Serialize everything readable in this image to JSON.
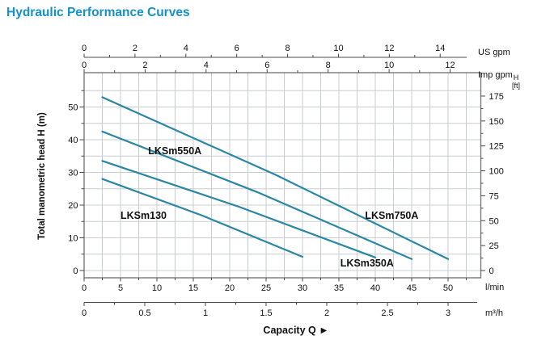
{
  "title": "Hydraulic Performance Curves",
  "colors": {
    "title": "#1591c9",
    "curve": "#2a86a5",
    "grid": "#c9cdd1",
    "frame": "#6e6e6e",
    "axis": "#4a4a4a",
    "text": "#111111"
  },
  "chart_data": {
    "type": "line",
    "title": "Hydraulic Performance Curves",
    "xlabel": "Capacity Q  ►",
    "ylabel": "Total manometric head H (m)",
    "grid": "on",
    "x_range_lmin": [
      0,
      54.5
    ],
    "y_range_m": [
      -2.2,
      60.5
    ],
    "x_axis_lmin": {
      "unit": "l/min",
      "ticks": [
        0,
        5,
        10,
        15,
        20,
        25,
        30,
        35,
        40,
        45,
        50
      ],
      "minor_step": 2.5
    },
    "x_axis_m3h": {
      "unit": "m³/h",
      "ticks": [
        0,
        0.5,
        1,
        1.5,
        2,
        2.5,
        3
      ],
      "minor_step": 0.25,
      "lmin_per_unit": 16.667
    },
    "x_axis_usgpm": {
      "unit": "US gpm",
      "ticks": [
        0,
        2,
        4,
        6,
        8,
        10,
        12,
        14
      ],
      "minor_step": 1,
      "lmin_per_unit": 3.494
    },
    "x_axis_impgpm": {
      "unit": "Imp gpm",
      "ticks": [
        0,
        2,
        4,
        6,
        8,
        10,
        12
      ],
      "minor_step": 1,
      "lmin_per_unit": 4.19
    },
    "y_axis_m": {
      "unit": "H (m)",
      "ticks": [
        0,
        10,
        20,
        30,
        40,
        50
      ],
      "minor_step": 5
    },
    "y_axis_ft": {
      "unit_line1": "H",
      "unit_line2": "[ft]",
      "ticks": [
        0,
        25,
        50,
        75,
        100,
        125,
        150,
        175
      ],
      "minor_step": 12.5,
      "m_per_ft": 0.3048
    },
    "series": [
      {
        "name": "LKSm750A",
        "points": [
          [
            2.5,
            53
          ],
          [
            26.25,
            29.3
          ],
          [
            50,
            3.5
          ]
        ],
        "label_pos": [
          38.6,
          15.8
        ]
      },
      {
        "name": "LKSm550A",
        "points": [
          [
            2.5,
            42.5
          ],
          [
            23.75,
            24.0
          ],
          [
            45,
            3.5
          ]
        ],
        "label_pos": [
          8.8,
          35.5
        ]
      },
      {
        "name": "LKSm350A",
        "points": [
          [
            2.5,
            33.5
          ],
          [
            21.25,
            19.5
          ],
          [
            40,
            4.0
          ]
        ],
        "label_pos": [
          35.2,
          1.2
        ]
      },
      {
        "name": "LKSm130",
        "points": [
          [
            2.5,
            28
          ],
          [
            16.25,
            16.8
          ],
          [
            30,
            4.2
          ]
        ],
        "label_pos": [
          5.0,
          15.8
        ]
      }
    ]
  }
}
